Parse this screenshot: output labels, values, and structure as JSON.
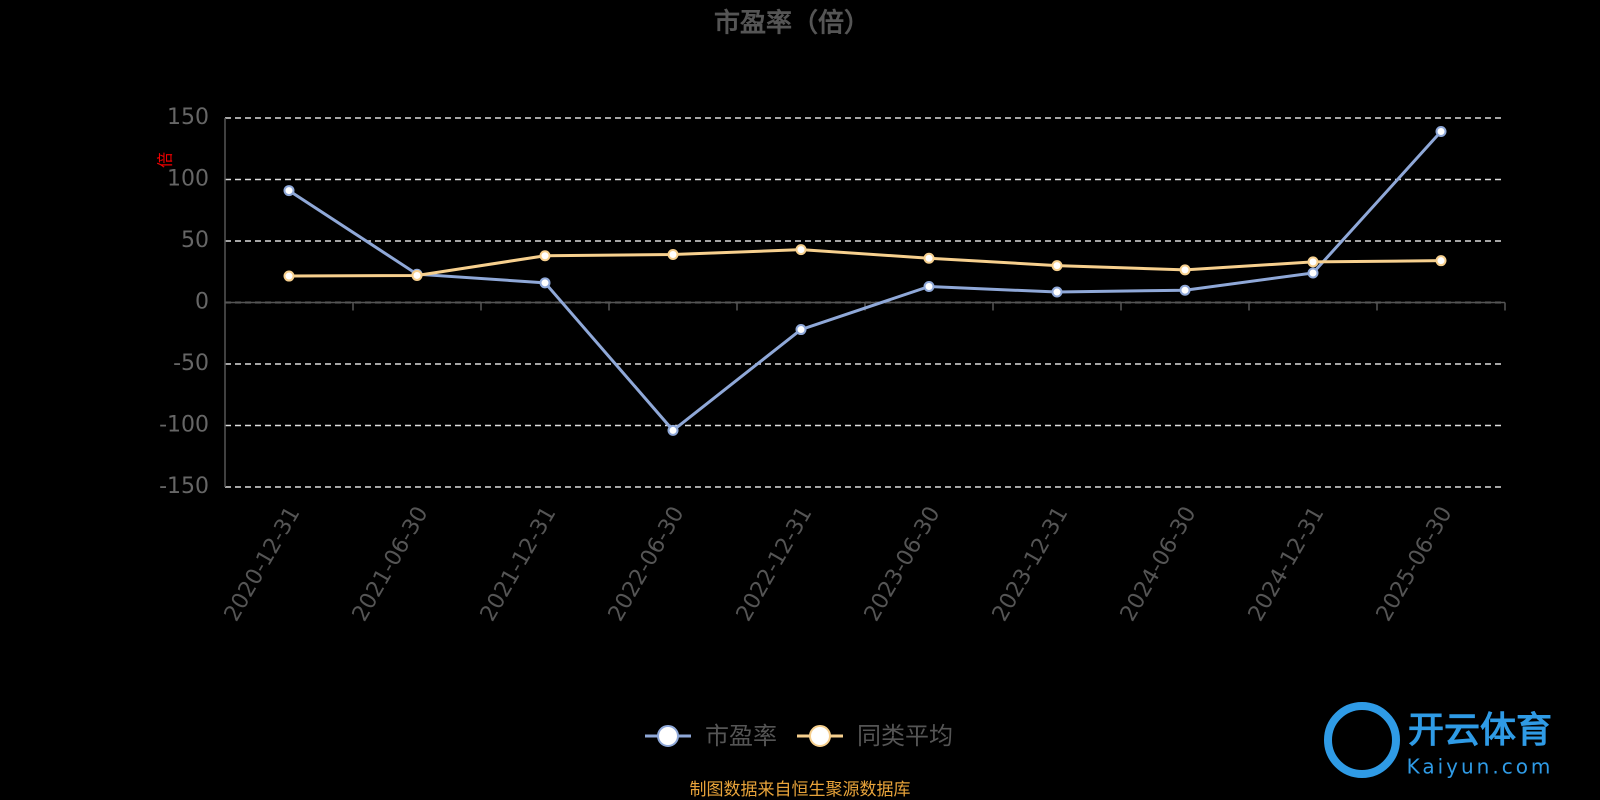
{
  "chart_data": {
    "type": "line",
    "title": "市盈率（倍）",
    "y_label": "倍",
    "categories": [
      "2020-12-31",
      "2021-06-30",
      "2021-12-31",
      "2022-06-30",
      "2022-12-31",
      "2023-06-30",
      "2023-12-31",
      "2024-06-30",
      "2024-12-31",
      "2025-06-30"
    ],
    "series": [
      {
        "name": "市盈率",
        "color": "#8fa8d8",
        "values": [
          91,
          23,
          16,
          -104,
          -22,
          13,
          8.5,
          10,
          24,
          139
        ]
      },
      {
        "name": "同类平均",
        "color": "#f7d08e",
        "values": [
          21.5,
          22,
          38,
          39,
          43,
          36,
          30,
          26.5,
          33,
          34
        ]
      }
    ],
    "ylim": [
      -150,
      150
    ],
    "yticks": [
      -150,
      -100,
      -50,
      0,
      50,
      100,
      150
    ],
    "grid": true,
    "legend": "bottom",
    "source": "制图数据来自恒生聚源数据库",
    "watermark": {
      "brand": "开云体育",
      "site": "Kaiyun.com"
    }
  }
}
